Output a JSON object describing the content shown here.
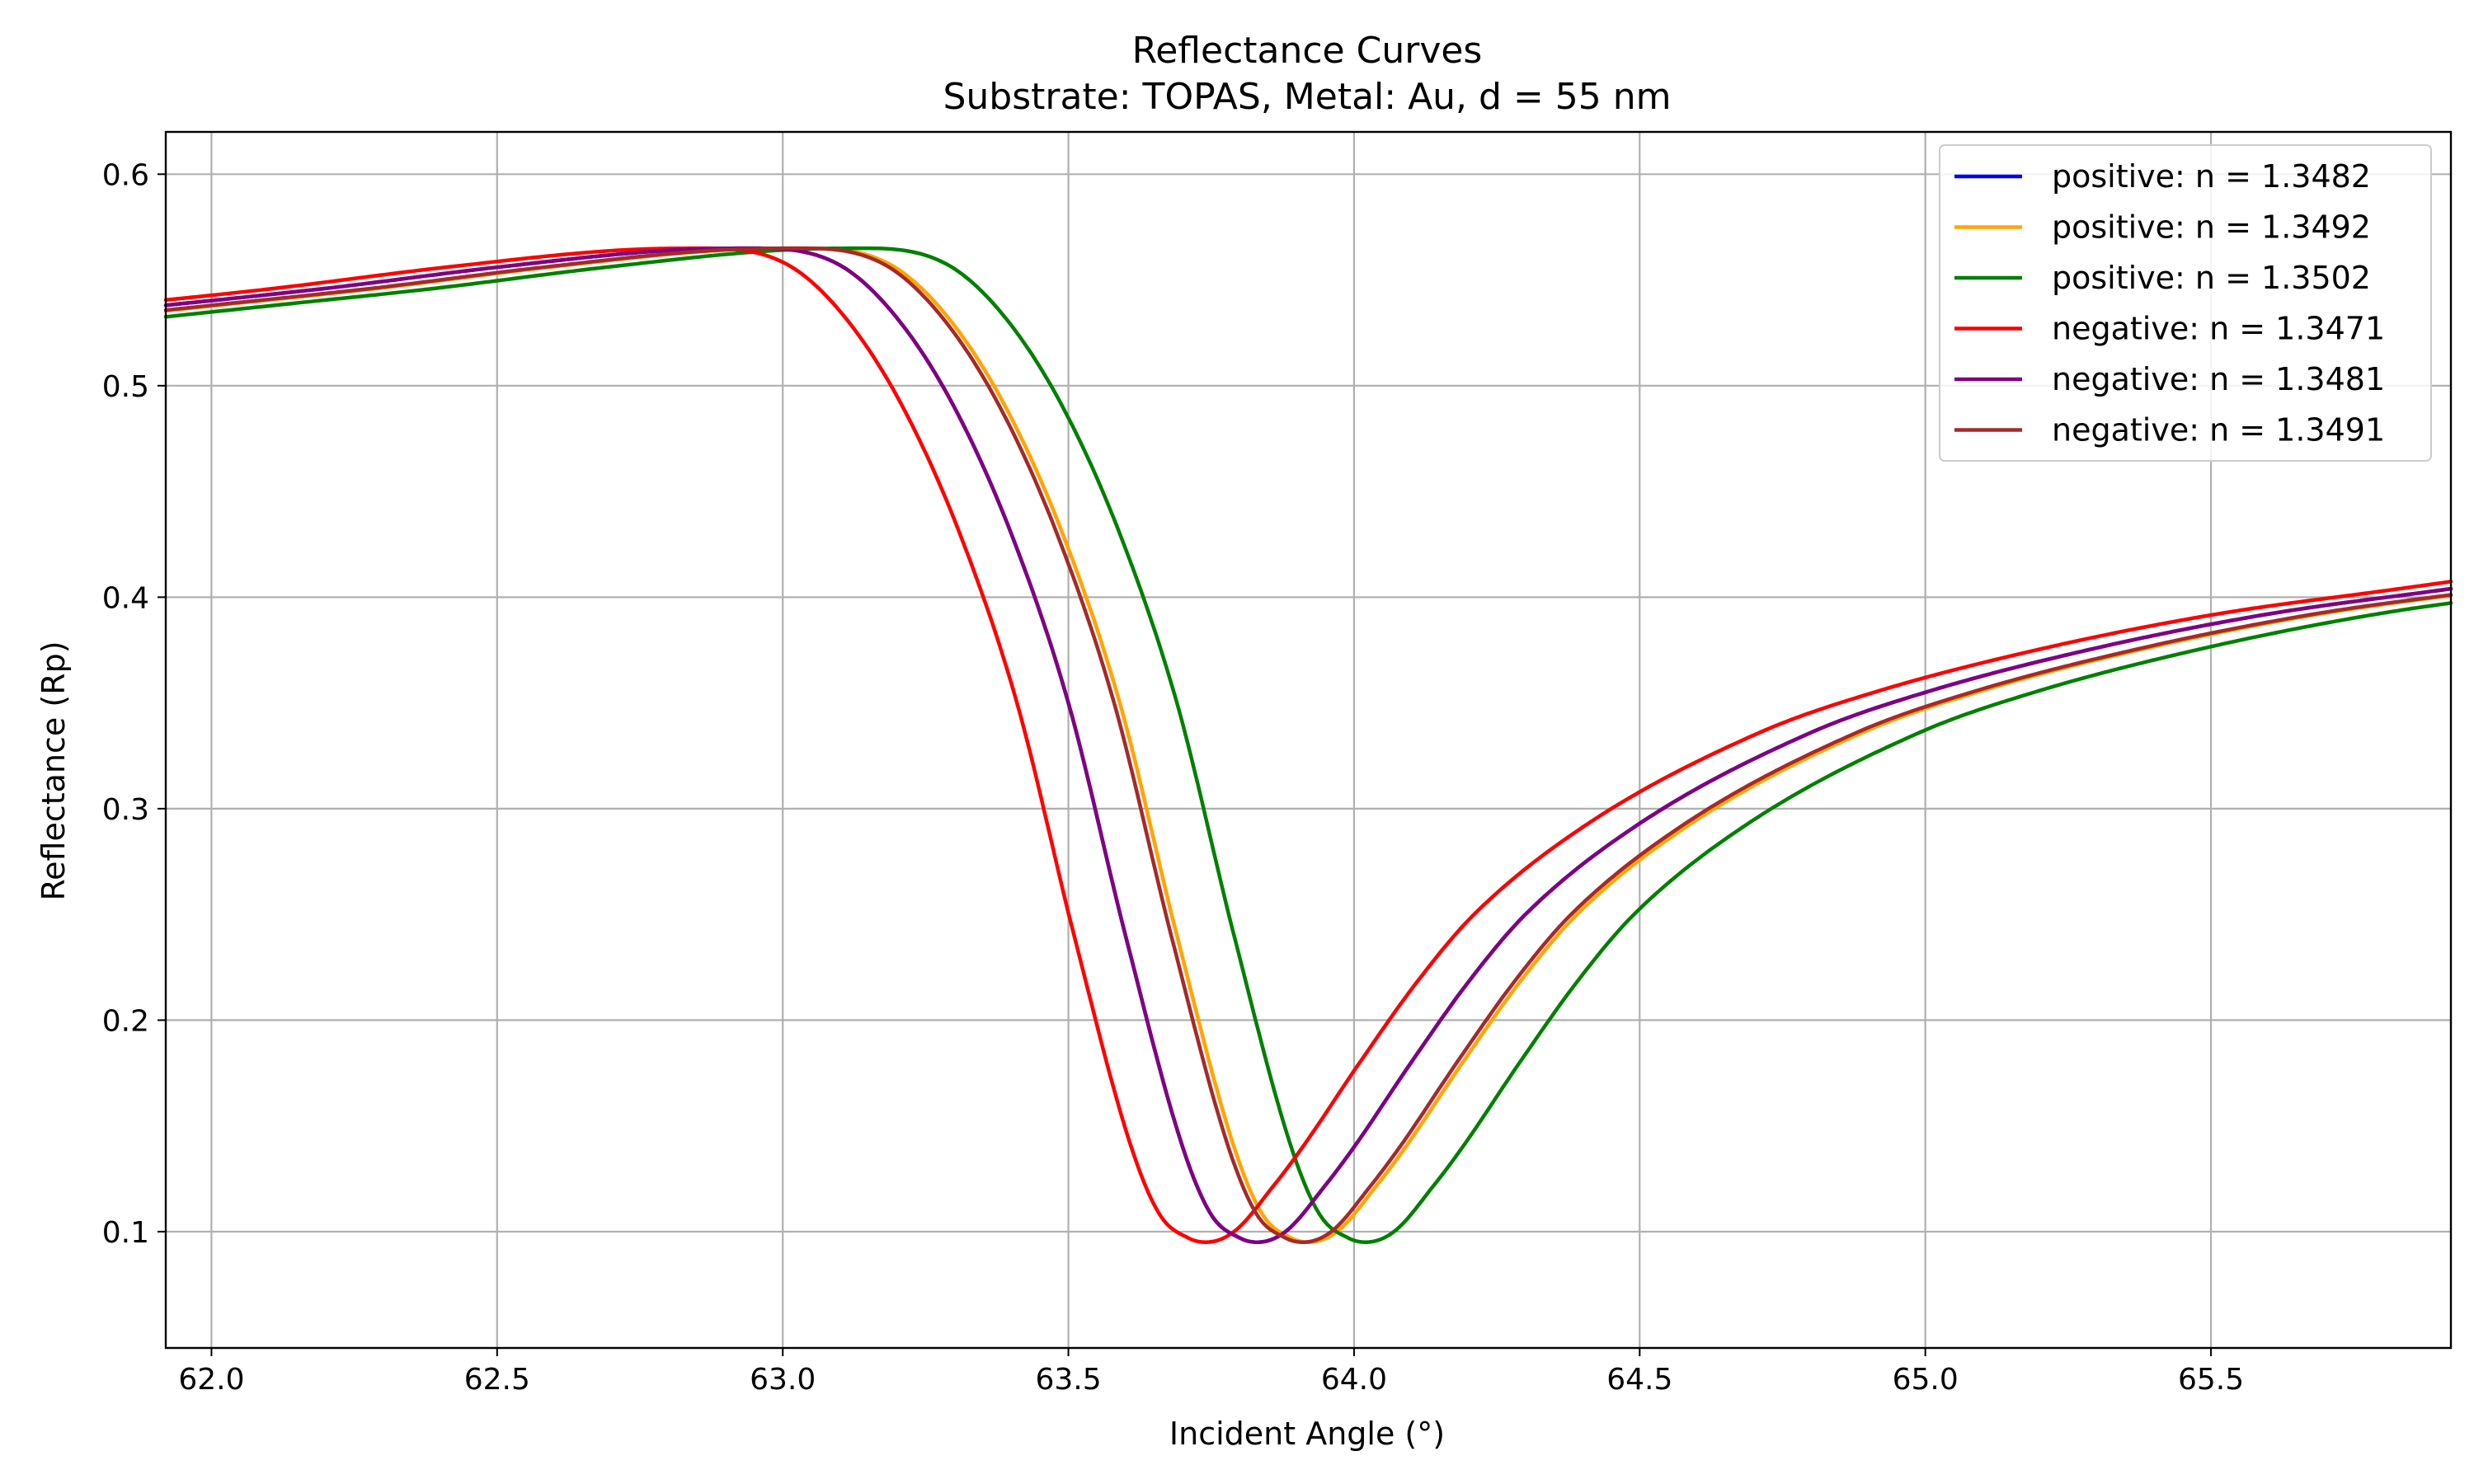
{
  "chart_data": {
    "type": "line",
    "title": "Reflectance Curves",
    "subtitle": "Substrate: TOPAS, Metal: Au, d = 55 nm",
    "xlabel": "Incident Angle (°)",
    "ylabel": "Reflectance (Rp)",
    "xlim": [
      61.92,
      65.92
    ],
    "ylim": [
      0.045,
      0.62
    ],
    "xticks": [
      "62.0",
      "62.5",
      "63.0",
      "63.5",
      "64.0",
      "64.5",
      "65.0",
      "65.5"
    ],
    "yticks": [
      "0.1",
      "0.2",
      "0.3",
      "0.4",
      "0.5",
      "0.6"
    ],
    "grid": true,
    "legend_position": "top-right",
    "series": [
      {
        "name": "positive: n = 1.3482",
        "color": "#0000ff",
        "shift": 0.0,
        "x": [
          61.92,
          62.2,
          62.5,
          62.8,
          62.95,
          63.1,
          63.2,
          63.3,
          63.4,
          63.5,
          63.6,
          63.7,
          63.75,
          63.8,
          63.83,
          63.88,
          63.95,
          64.0,
          64.1,
          64.2,
          64.3,
          64.5,
          64.8,
          65.0,
          65.3,
          65.6,
          65.92
        ],
        "y": [
          0.538,
          0.546,
          0.556,
          0.564,
          0.565,
          0.557,
          0.532,
          0.49,
          0.43,
          0.35,
          0.24,
          0.14,
          0.108,
          0.097,
          0.095,
          0.1,
          0.122,
          0.14,
          0.18,
          0.218,
          0.25,
          0.293,
          0.336,
          0.355,
          0.376,
          0.392,
          0.404
        ]
      },
      {
        "name": "positive: n = 1.3492",
        "color": "#ffa500",
        "shift": 0.09
      },
      {
        "name": "positive: n = 1.3502",
        "color": "#008000",
        "shift": 0.19
      },
      {
        "name": "negative: n = 1.3471",
        "color": "#ff0000",
        "shift": -0.09
      },
      {
        "name": "negative: n = 1.3481",
        "color": "#800080",
        "shift": 0.0
      },
      {
        "name": "negative: n = 1.3491",
        "color": "#a52a2a",
        "shift": 0.08
      }
    ]
  }
}
